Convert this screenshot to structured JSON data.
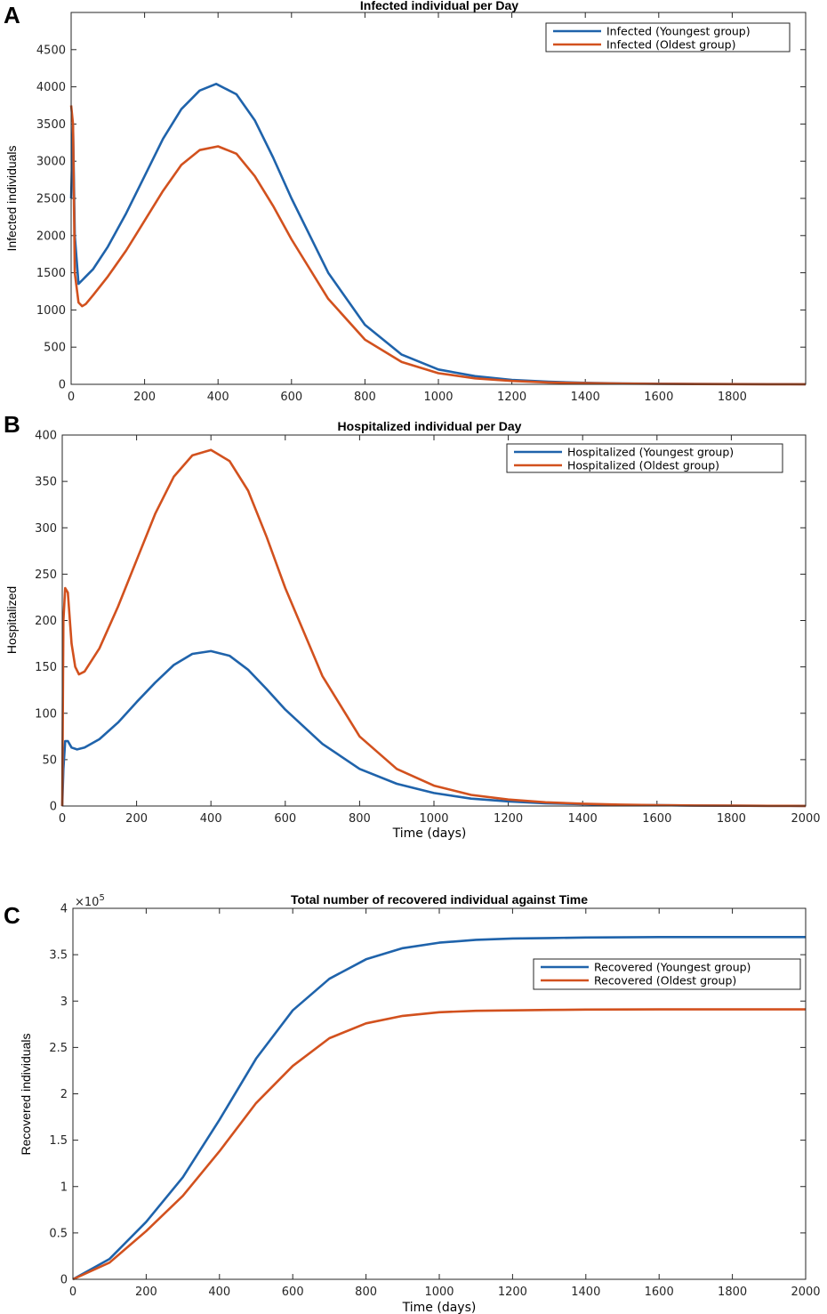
{
  "colors": {
    "youngest": "#1f63ab",
    "oldest": "#d2511e"
  },
  "chart_data": [
    {
      "panel": "A",
      "type": "line",
      "title": "Infected individual per Day",
      "xlabel": "",
      "ylabel": "Infected individuals",
      "xlim": [
        0,
        2000
      ],
      "ylim": [
        0,
        5000
      ],
      "xticks": [
        0,
        200,
        400,
        600,
        800,
        1000,
        1200,
        1400,
        1600,
        1800
      ],
      "yticks": [
        0,
        500,
        1000,
        1500,
        2000,
        2500,
        3000,
        3500,
        4000,
        4500
      ],
      "legend": "top-right",
      "series": [
        {
          "name": "Infected (Youngest group)",
          "color": "#1f63ab",
          "x": [
            0,
            5,
            10,
            20,
            30,
            40,
            60,
            100,
            150,
            200,
            250,
            300,
            350,
            395,
            450,
            500,
            550,
            600,
            700,
            800,
            900,
            1000,
            1100,
            1200,
            1300,
            1400,
            1500,
            1600,
            1700,
            1800,
            1900,
            2000
          ],
          "y": [
            2500,
            3500,
            2000,
            1350,
            1400,
            1450,
            1550,
            1850,
            2300,
            2800,
            3300,
            3700,
            3950,
            4040,
            3900,
            3550,
            3050,
            2500,
            1500,
            800,
            400,
            200,
            110,
            60,
            35,
            20,
            12,
            8,
            5,
            3,
            2,
            1
          ]
        },
        {
          "name": "Infected (Oldest group)",
          "color": "#d2511e",
          "x": [
            0,
            5,
            10,
            20,
            30,
            40,
            60,
            100,
            150,
            200,
            250,
            300,
            350,
            400,
            450,
            500,
            550,
            600,
            700,
            800,
            900,
            1000,
            1100,
            1200,
            1300,
            1400,
            1500,
            1600,
            1700,
            1800,
            1900,
            2000
          ],
          "y": [
            3750,
            3500,
            1500,
            1100,
            1050,
            1080,
            1200,
            1450,
            1800,
            2200,
            2600,
            2950,
            3150,
            3200,
            3100,
            2800,
            2400,
            1950,
            1150,
            600,
            300,
            150,
            80,
            45,
            25,
            15,
            9,
            6,
            4,
            2,
            1,
            1
          ]
        }
      ]
    },
    {
      "panel": "B",
      "type": "line",
      "title": "Hospitalized individual per Day",
      "xlabel": "Time (days)",
      "ylabel": "Hospitalized",
      "xlim": [
        0,
        2000
      ],
      "ylim": [
        0,
        400
      ],
      "xticks": [
        0,
        200,
        400,
        600,
        800,
        1000,
        1200,
        1400,
        1600,
        1800,
        2000
      ],
      "yticks": [
        0,
        50,
        100,
        150,
        200,
        250,
        300,
        350,
        400
      ],
      "legend": "top-right",
      "series": [
        {
          "name": "Hospitalized (Youngest group)",
          "color": "#1f63ab",
          "x": [
            0,
            3,
            8,
            15,
            25,
            40,
            60,
            100,
            150,
            200,
            250,
            300,
            350,
            400,
            450,
            500,
            550,
            600,
            700,
            800,
            900,
            1000,
            1100,
            1200,
            1300,
            1400,
            1500,
            1600,
            1700,
            1800,
            1900,
            2000
          ],
          "y": [
            0,
            40,
            70,
            70,
            63,
            61,
            63,
            72,
            90,
            112,
            133,
            152,
            164,
            167,
            162,
            147,
            126,
            104,
            67,
            40,
            24,
            14,
            8,
            5,
            3,
            2,
            1,
            1,
            0.5,
            0.3,
            0.2,
            0.1
          ]
        },
        {
          "name": "Hospitalized (Oldest group)",
          "color": "#d2511e",
          "x": [
            0,
            3,
            8,
            15,
            25,
            35,
            45,
            60,
            100,
            150,
            200,
            250,
            300,
            350,
            400,
            450,
            500,
            550,
            600,
            700,
            800,
            900,
            1000,
            1100,
            1200,
            1300,
            1400,
            1500,
            1600,
            1700,
            1800,
            1900,
            2000
          ],
          "y": [
            0,
            200,
            235,
            230,
            175,
            150,
            142,
            145,
            170,
            215,
            265,
            315,
            355,
            378,
            384,
            372,
            340,
            290,
            235,
            140,
            75,
            40,
            22,
            12,
            7,
            4,
            2.5,
            1.5,
            1,
            0.6,
            0.4,
            0.2,
            0.1
          ]
        }
      ]
    },
    {
      "panel": "C",
      "type": "line",
      "title": "Total number of recovered individual against Time",
      "xlabel": "Time (days)",
      "ylabel": "Recovered individuals",
      "exponent_label": "×10",
      "exponent_power": "5",
      "xlim": [
        0,
        2000
      ],
      "ylim": [
        0,
        4
      ],
      "xticks": [
        0,
        200,
        400,
        600,
        800,
        1000,
        1200,
        1400,
        1600,
        1800,
        2000
      ],
      "yticks": [
        0,
        0.5,
        1,
        1.5,
        2,
        2.5,
        3,
        3.5,
        4
      ],
      "legend": "right",
      "series": [
        {
          "name": "Recovered (Youngest group)",
          "color": "#1f63ab",
          "x": [
            0,
            100,
            200,
            300,
            400,
            500,
            600,
            700,
            800,
            900,
            1000,
            1100,
            1200,
            1300,
            1400,
            1600,
            1800,
            2000
          ],
          "y": [
            0,
            0.22,
            0.62,
            1.1,
            1.72,
            2.38,
            2.9,
            3.24,
            3.45,
            3.57,
            3.63,
            3.66,
            3.675,
            3.68,
            3.685,
            3.69,
            3.69,
            3.69
          ]
        },
        {
          "name": "Recovered (Oldest group)",
          "color": "#d2511e",
          "x": [
            0,
            100,
            200,
            300,
            400,
            500,
            600,
            700,
            800,
            900,
            1000,
            1100,
            1200,
            1300,
            1400,
            1600,
            1800,
            2000
          ],
          "y": [
            0,
            0.18,
            0.52,
            0.9,
            1.38,
            1.9,
            2.3,
            2.6,
            2.76,
            2.84,
            2.88,
            2.895,
            2.9,
            2.905,
            2.908,
            2.91,
            2.91,
            2.91
          ]
        }
      ]
    }
  ]
}
